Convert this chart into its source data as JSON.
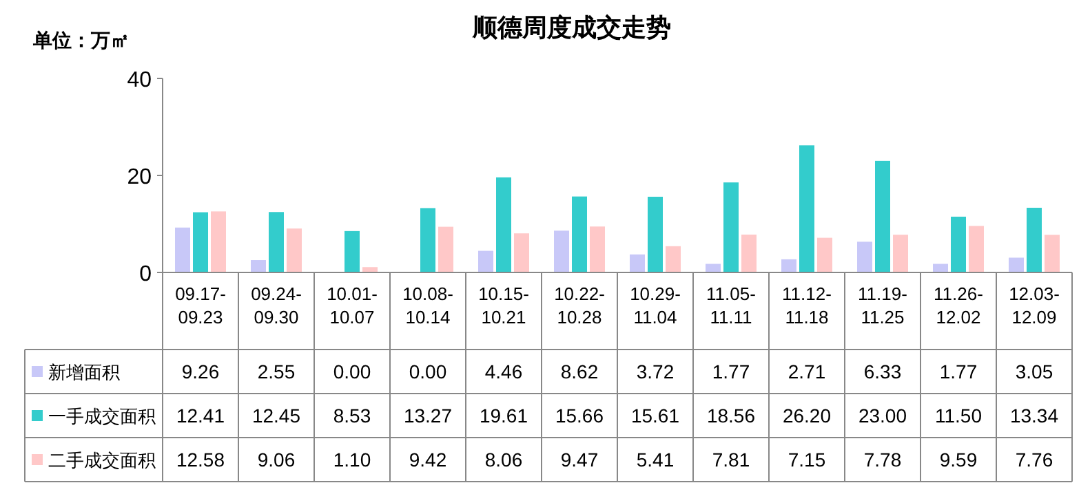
{
  "chart_data": {
    "type": "bar",
    "title": "顺德周度成交走势",
    "ylabel": "单位：万㎡",
    "categories": [
      "09.17-09.23",
      "09.24-09.30",
      "10.01-10.07",
      "10.08-10.14",
      "10.15-10.21",
      "10.22-10.28",
      "10.29-11.04",
      "11.05-11.11",
      "11.12-11.18",
      "11.19-11.25",
      "11.26-12.02",
      "12.03-12.09"
    ],
    "series": [
      {
        "name": "新增面积",
        "color": "#c8c8f8",
        "values": [
          9.26,
          2.55,
          0.0,
          0.0,
          4.46,
          8.62,
          3.72,
          1.77,
          2.71,
          6.33,
          1.77,
          3.05
        ],
        "value_labels": [
          "9.26",
          "2.55",
          "0.00",
          "0.00",
          "4.46",
          "8.62",
          "3.72",
          "1.77",
          "2.71",
          "6.33",
          "1.77",
          "3.05"
        ]
      },
      {
        "name": "一手成交面积",
        "color": "#33cccc",
        "values": [
          12.41,
          12.45,
          8.53,
          13.27,
          19.61,
          15.66,
          15.61,
          18.56,
          26.2,
          23.0,
          11.5,
          13.34
        ],
        "value_labels": [
          "12.41",
          "12.45",
          "8.53",
          "13.27",
          "19.61",
          "15.66",
          "15.61",
          "18.56",
          "26.20",
          "23.00",
          "11.50",
          "13.34"
        ]
      },
      {
        "name": "二手成交面积",
        "color": "#ffc8c8",
        "values": [
          12.58,
          9.06,
          1.1,
          9.42,
          8.06,
          9.47,
          5.41,
          7.81,
          7.15,
          7.78,
          9.59,
          7.76
        ],
        "value_labels": [
          "12.58",
          "9.06",
          "1.10",
          "9.42",
          "8.06",
          "9.47",
          "5.41",
          "7.81",
          "7.15",
          "7.78",
          "9.59",
          "7.76"
        ]
      }
    ],
    "ylim": [
      0,
      40
    ],
    "yticks": [
      0,
      20,
      40
    ],
    "legend": "bottom left"
  }
}
